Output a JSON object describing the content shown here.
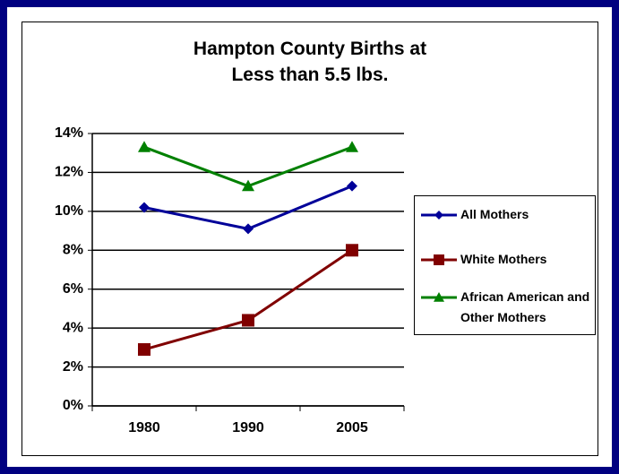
{
  "chart_data": {
    "type": "line",
    "title": "Hampton County Births at Less than 5.5 lbs.",
    "categories": [
      "1980",
      "1990",
      "2005"
    ],
    "series": [
      {
        "name": "All Mothers",
        "color": "#000099",
        "marker": "diamond",
        "values": [
          10.2,
          9.1,
          11.3
        ]
      },
      {
        "name": "White Mothers",
        "color": "#800000",
        "marker": "square",
        "values": [
          2.9,
          4.4,
          8.0
        ]
      },
      {
        "name": "African American and Other Mothers",
        "color": "#008000",
        "marker": "triangle",
        "values": [
          13.3,
          11.3,
          13.3
        ]
      }
    ],
    "ylim": [
      0,
      14
    ],
    "yticks": [
      {
        "value": 0,
        "label": "0%"
      },
      {
        "value": 2,
        "label": "2%"
      },
      {
        "value": 4,
        "label": "4%"
      },
      {
        "value": 6,
        "label": "6%"
      },
      {
        "value": 8,
        "label": "8%"
      },
      {
        "value": 10,
        "label": "10%"
      },
      {
        "value": 12,
        "label": "12%"
      },
      {
        "value": 14,
        "label": "14%"
      }
    ],
    "grid": true,
    "legend": "right"
  }
}
